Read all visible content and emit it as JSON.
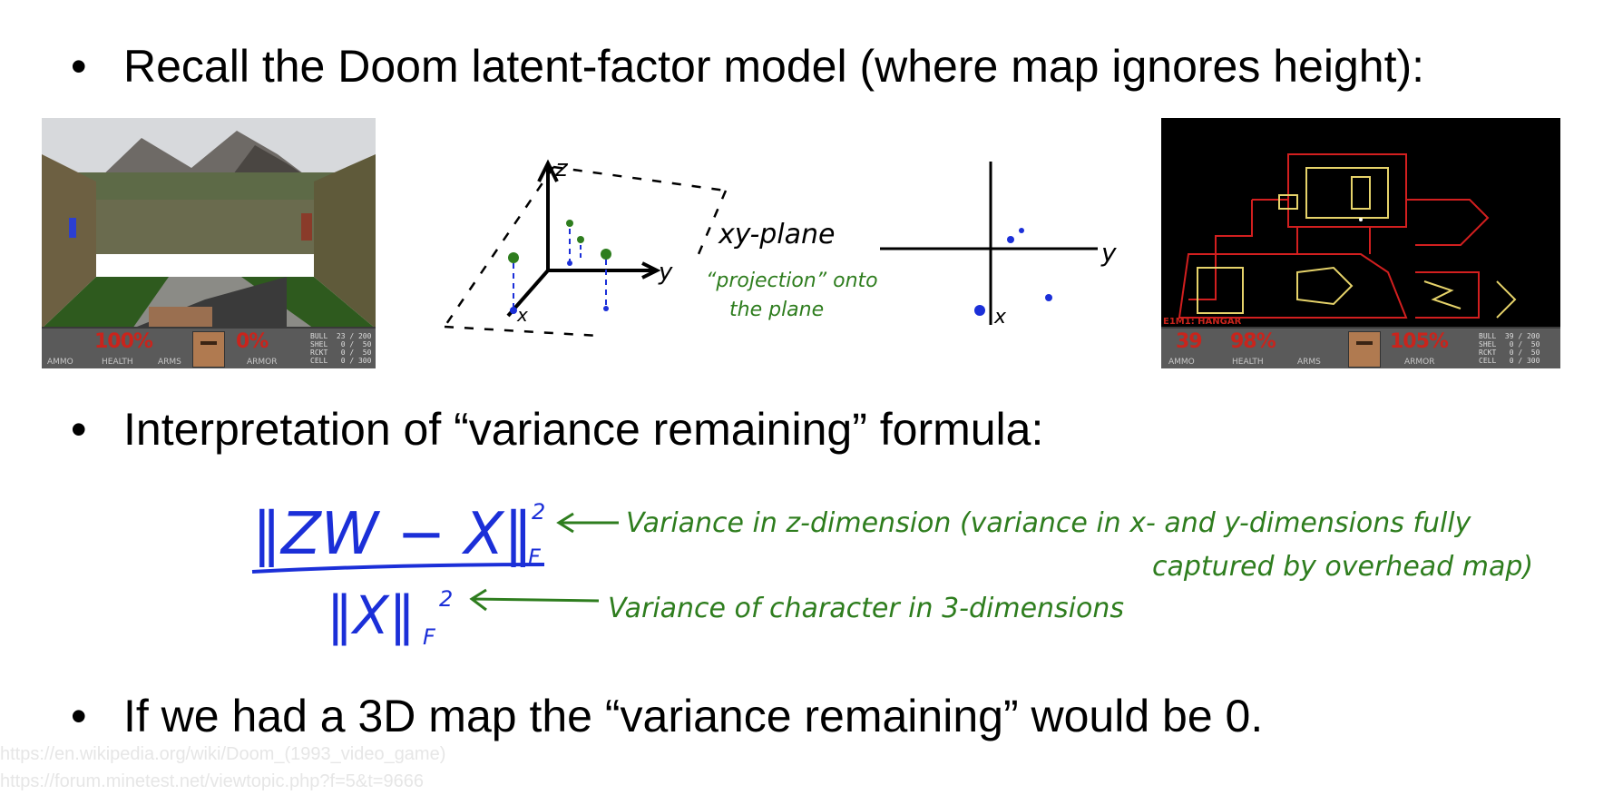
{
  "bullets": {
    "b1": "Recall the Doom latent-factor model (where map ignores height):",
    "b2": "Interpretation of “variance remaining” formula:",
    "b3": "If we had a 3D map the “variance remaining” would be 0.",
    "marker": "•"
  },
  "doom_hud": {
    "ammo": "100%",
    "health": "",
    "armor": "0%",
    "labels": [
      "AMMO",
      "HEALTH",
      "ARMS",
      "ARMOR"
    ],
    "ammo_table": "BULL  23 / 200\nSHEL   0 /  50\nRCKT   0 /  50\nCELL   0 / 300"
  },
  "map_hud": {
    "ammo": "39",
    "health": "98%",
    "armor": "105%",
    "labels": [
      "AMMO",
      "HEALTH",
      "ARMS",
      "ARMOR"
    ],
    "level_name": "E1M1: HANGAR",
    "ammo_table": "BULL  39 / 200\nSHEL   0 /  50\nRCKT   0 /  50\nCELL   0 / 300"
  },
  "diagram3d": {
    "z_label": "z",
    "y_label": "y",
    "x_label": "x",
    "plane_label": "xy-plane",
    "projection_label_1": "“projection” onto",
    "projection_label_2": "the plane"
  },
  "diagram2d": {
    "y_label": "y",
    "x_label": "x"
  },
  "formula": {
    "numerator": "‖ZW − X‖",
    "numerator_sub": "F",
    "numerator_sup": "2",
    "denominator": "‖X‖",
    "denominator_sub": "F",
    "denominator_sup": "2",
    "note_numerator_1": "Variance in z-dimension  (variance in x- and y-dimensions fully",
    "note_numerator_2": "captured by overhead map)",
    "note_denominator": "Variance of character in 3-dimensions"
  },
  "sources": [
    "https://en.wikipedia.org/wiki/Doom_(1993_video_game)",
    "https://forum.minetest.net/viewtopic.php?f=5&t=9666"
  ],
  "colors": {
    "ink_blue": "#1b2fd8",
    "ink_green": "#2e7d1e",
    "hud_red": "#c9241c",
    "map_red": "#d21f1f",
    "map_yellow": "#e6d36a"
  }
}
